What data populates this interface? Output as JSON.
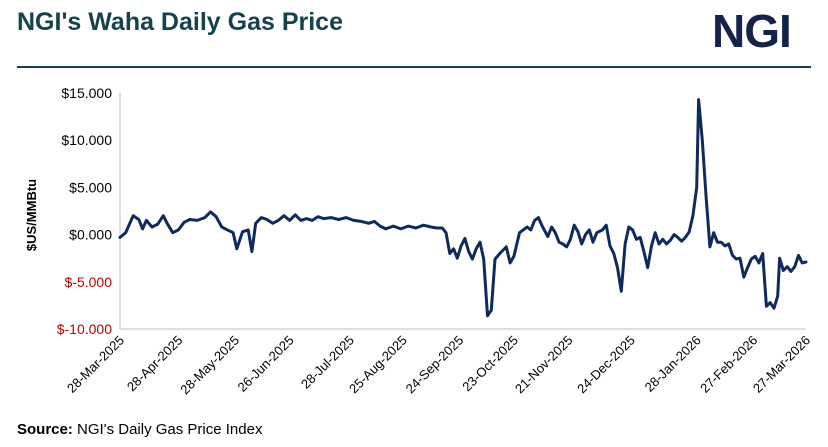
{
  "header": {
    "title": "NGI's Waha Daily Gas Price",
    "logo_text": "NGI"
  },
  "footer": {
    "source_label": "Source:",
    "source_text": "NGI's Daily Gas Price Index"
  },
  "colors": {
    "title": "#14434d",
    "logo": "#15224a",
    "line": "#0f2a5c",
    "negative_tick": "#c00000",
    "positive_tick": "#000000"
  },
  "chart_data": {
    "type": "line",
    "ylabel": "$US/MMBtu",
    "ylim": [
      -10,
      15
    ],
    "xlim": [
      "2025-03-28",
      "2026-03-27"
    ],
    "y_ticks": [
      {
        "value": 15,
        "label": "$15.000"
      },
      {
        "value": 10,
        "label": "$10.000"
      },
      {
        "value": 5,
        "label": "$5.000"
      },
      {
        "value": 0,
        "label": "$0.000"
      },
      {
        "value": -5,
        "label": "$-5.000"
      },
      {
        "value": -10,
        "label": "$-10.000"
      }
    ],
    "x_ticks": [
      {
        "date": "2025-03-28",
        "label": "28-Mar-2025"
      },
      {
        "date": "2025-04-28",
        "label": "28-Apr-2025"
      },
      {
        "date": "2025-05-28",
        "label": "28-May-2025"
      },
      {
        "date": "2025-06-26",
        "label": "26-Jun-2025"
      },
      {
        "date": "2025-07-28",
        "label": "28-Jul-2025"
      },
      {
        "date": "2025-08-25",
        "label": "25-Aug-2025"
      },
      {
        "date": "2025-09-24",
        "label": "24-Sep-2025"
      },
      {
        "date": "2025-10-23",
        "label": "23-Oct-2025"
      },
      {
        "date": "2025-11-21",
        "label": "21-Nov-2025"
      },
      {
        "date": "2025-12-24",
        "label": "24-Dec-2025"
      },
      {
        "date": "2026-01-28",
        "label": "28-Jan-2026"
      },
      {
        "date": "2026-02-27",
        "label": "27-Feb-2026"
      },
      {
        "date": "2026-03-27",
        "label": "27-Mar-2026"
      }
    ],
    "grid": false,
    "legend": "none",
    "series": [
      {
        "points": [
          [
            "2025-03-28",
            -0.3
          ],
          [
            "2025-03-31",
            0.2
          ],
          [
            "2025-04-04",
            2.0
          ],
          [
            "2025-04-07",
            1.6
          ],
          [
            "2025-04-09",
            0.6
          ],
          [
            "2025-04-11",
            1.5
          ],
          [
            "2025-04-14",
            0.8
          ],
          [
            "2025-04-17",
            1.1
          ],
          [
            "2025-04-20",
            2.0
          ],
          [
            "2025-04-22",
            1.2
          ],
          [
            "2025-04-25",
            0.2
          ],
          [
            "2025-04-28",
            0.5
          ],
          [
            "2025-05-01",
            1.3
          ],
          [
            "2025-05-04",
            1.6
          ],
          [
            "2025-05-08",
            1.5
          ],
          [
            "2025-05-12",
            1.8
          ],
          [
            "2025-05-15",
            2.4
          ],
          [
            "2025-05-18",
            1.9
          ],
          [
            "2025-05-21",
            0.8
          ],
          [
            "2025-05-24",
            0.5
          ],
          [
            "2025-05-27",
            0.2
          ],
          [
            "2025-05-29",
            -1.5
          ],
          [
            "2025-06-01",
            0.3
          ],
          [
            "2025-06-04",
            0.5
          ],
          [
            "2025-06-06",
            -1.8
          ],
          [
            "2025-06-08",
            1.2
          ],
          [
            "2025-06-11",
            1.8
          ],
          [
            "2025-06-14",
            1.6
          ],
          [
            "2025-06-17",
            1.2
          ],
          [
            "2025-06-20",
            1.5
          ],
          [
            "2025-06-23",
            2.0
          ],
          [
            "2025-06-26",
            1.5
          ],
          [
            "2025-06-29",
            2.1
          ],
          [
            "2025-07-02",
            1.5
          ],
          [
            "2025-07-05",
            1.7
          ],
          [
            "2025-07-08",
            1.5
          ],
          [
            "2025-07-11",
            1.9
          ],
          [
            "2025-07-14",
            1.7
          ],
          [
            "2025-07-18",
            1.8
          ],
          [
            "2025-07-22",
            1.6
          ],
          [
            "2025-07-26",
            1.8
          ],
          [
            "2025-07-30",
            1.5
          ],
          [
            "2025-08-03",
            1.4
          ],
          [
            "2025-08-07",
            1.2
          ],
          [
            "2025-08-10",
            1.4
          ],
          [
            "2025-08-13",
            0.9
          ],
          [
            "2025-08-16",
            0.6
          ],
          [
            "2025-08-20",
            0.9
          ],
          [
            "2025-08-24",
            0.6
          ],
          [
            "2025-08-28",
            0.9
          ],
          [
            "2025-09-01",
            0.7
          ],
          [
            "2025-09-05",
            1.0
          ],
          [
            "2025-09-09",
            0.8
          ],
          [
            "2025-09-12",
            0.7
          ],
          [
            "2025-09-15",
            0.7
          ],
          [
            "2025-09-17",
            0.2
          ],
          [
            "2025-09-19",
            -2.0
          ],
          [
            "2025-09-21",
            -1.5
          ],
          [
            "2025-09-23",
            -2.5
          ],
          [
            "2025-09-25",
            -1.2
          ],
          [
            "2025-09-27",
            -0.4
          ],
          [
            "2025-09-29",
            -1.8
          ],
          [
            "2025-10-01",
            -2.6
          ],
          [
            "2025-10-03",
            -1.5
          ],
          [
            "2025-10-05",
            -0.8
          ],
          [
            "2025-10-07",
            -2.6
          ],
          [
            "2025-10-09",
            -8.6
          ],
          [
            "2025-10-11",
            -8.0
          ],
          [
            "2025-10-13",
            -2.6
          ],
          [
            "2025-10-16",
            -1.9
          ],
          [
            "2025-10-19",
            -1.3
          ],
          [
            "2025-10-21",
            -3.0
          ],
          [
            "2025-10-23",
            -2.3
          ],
          [
            "2025-10-26",
            0.2
          ],
          [
            "2025-10-28",
            0.5
          ],
          [
            "2025-10-30",
            0.8
          ],
          [
            "2025-11-01",
            0.5
          ],
          [
            "2025-11-03",
            1.5
          ],
          [
            "2025-11-05",
            1.8
          ],
          [
            "2025-11-07",
            0.9
          ],
          [
            "2025-11-10",
            -0.2
          ],
          [
            "2025-11-12",
            0.8
          ],
          [
            "2025-11-14",
            0.2
          ],
          [
            "2025-11-16",
            -0.8
          ],
          [
            "2025-11-18",
            -1.0
          ],
          [
            "2025-11-20",
            -1.3
          ],
          [
            "2025-11-22",
            -0.5
          ],
          [
            "2025-11-24",
            1.0
          ],
          [
            "2025-11-26",
            0.3
          ],
          [
            "2025-11-28",
            -1.0
          ],
          [
            "2025-11-30",
            0.0
          ],
          [
            "2025-12-02",
            0.5
          ],
          [
            "2025-12-04",
            -0.8
          ],
          [
            "2025-12-06",
            0.2
          ],
          [
            "2025-12-09",
            0.5
          ],
          [
            "2025-12-11",
            1.0
          ],
          [
            "2025-12-13",
            -1.2
          ],
          [
            "2025-12-15",
            -2.0
          ],
          [
            "2025-12-17",
            -3.5
          ],
          [
            "2025-12-19",
            -6.0
          ],
          [
            "2025-12-21",
            -1.0
          ],
          [
            "2025-12-23",
            0.8
          ],
          [
            "2025-12-25",
            0.5
          ],
          [
            "2025-12-27",
            -0.5
          ],
          [
            "2025-12-29",
            -0.3
          ],
          [
            "2025-12-31",
            -1.8
          ],
          [
            "2026-01-02",
            -3.5
          ],
          [
            "2026-01-04",
            -1.2
          ],
          [
            "2026-01-06",
            0.2
          ],
          [
            "2026-01-08",
            -1.0
          ],
          [
            "2026-01-10",
            -0.5
          ],
          [
            "2026-01-12",
            -1.0
          ],
          [
            "2026-01-14",
            -0.6
          ],
          [
            "2026-01-16",
            0.0
          ],
          [
            "2026-01-18",
            -0.3
          ],
          [
            "2026-01-20",
            -0.7
          ],
          [
            "2026-01-22",
            -0.3
          ],
          [
            "2026-01-24",
            0.3
          ],
          [
            "2026-01-26",
            2.0
          ],
          [
            "2026-01-28",
            5.0
          ],
          [
            "2026-01-29",
            14.3
          ],
          [
            "2026-01-31",
            10.0
          ],
          [
            "2026-02-02",
            4.0
          ],
          [
            "2026-02-04",
            -1.3
          ],
          [
            "2026-02-06",
            0.2
          ],
          [
            "2026-02-08",
            -0.8
          ],
          [
            "2026-02-10",
            -0.8
          ],
          [
            "2026-02-12",
            -1.2
          ],
          [
            "2026-02-14",
            -1.0
          ],
          [
            "2026-02-16",
            -2.2
          ],
          [
            "2026-02-18",
            -2.6
          ],
          [
            "2026-02-20",
            -2.5
          ],
          [
            "2026-02-22",
            -4.5
          ],
          [
            "2026-02-24",
            -3.5
          ],
          [
            "2026-02-26",
            -2.6
          ],
          [
            "2026-02-28",
            -2.3
          ],
          [
            "2026-03-02",
            -3.0
          ],
          [
            "2026-03-04",
            -2.0
          ],
          [
            "2026-03-06",
            -7.6
          ],
          [
            "2026-03-08",
            -7.2
          ],
          [
            "2026-03-10",
            -7.8
          ],
          [
            "2026-03-12",
            -6.5
          ],
          [
            "2026-03-13",
            -2.5
          ],
          [
            "2026-03-15",
            -3.8
          ],
          [
            "2026-03-17",
            -3.4
          ],
          [
            "2026-03-19",
            -3.9
          ],
          [
            "2026-03-21",
            -3.4
          ],
          [
            "2026-03-23",
            -2.2
          ],
          [
            "2026-03-25",
            -3.0
          ],
          [
            "2026-03-27",
            -2.9
          ]
        ]
      }
    ]
  }
}
